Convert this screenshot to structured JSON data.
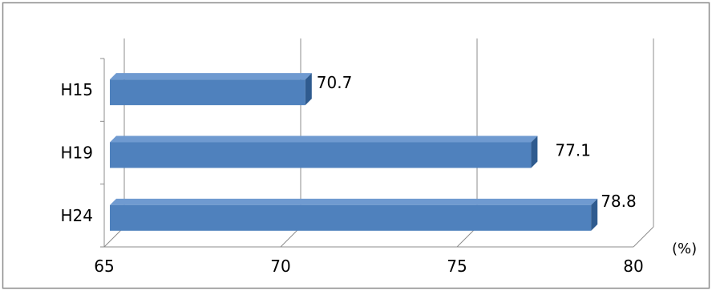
{
  "chart_data": {
    "type": "bar",
    "orientation": "horizontal",
    "categories": [
      "H15",
      "H19",
      "H24"
    ],
    "values": [
      70.7,
      77.1,
      78.8
    ],
    "value_labels": [
      "70.7",
      "77.1",
      "78.8"
    ],
    "x_ticks": [
      "65",
      "70",
      "75",
      "80"
    ],
    "xlim": [
      65,
      80
    ],
    "unit_label": "(%)",
    "title": "",
    "xlabel": "",
    "ylabel": "",
    "grid": true,
    "legend": "none",
    "bar_style": "3d",
    "colors": {
      "bar_front": "#4f81bd",
      "bar_top": "#6f9ad0",
      "bar_side": "#2f5b8f",
      "grid": "#8c8c8c",
      "frame_border": "#8c8c8c"
    }
  }
}
